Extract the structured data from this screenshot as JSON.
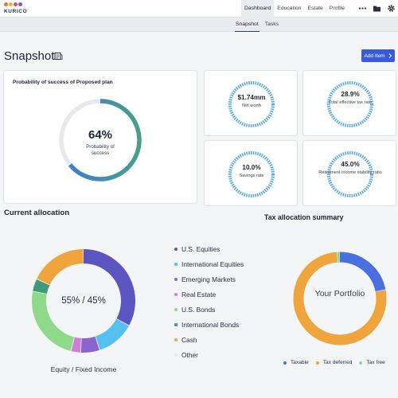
{
  "brand": {
    "name": "KURICO",
    "dot_colors": [
      "#e8732c",
      "#f2b233",
      "#d94c6b",
      "#7d56c9"
    ]
  },
  "nav": {
    "items": [
      {
        "label": "Dashboard",
        "active": true
      },
      {
        "label": "Education",
        "active": false
      },
      {
        "label": "Estate",
        "active": false
      },
      {
        "label": "Profile",
        "active": false
      }
    ],
    "icons": [
      "more-icon",
      "folder-icon",
      "gear-icon"
    ]
  },
  "subnav": {
    "items": [
      {
        "label": "Snapshot",
        "active": true
      },
      {
        "label": "Tasks",
        "active": false
      }
    ]
  },
  "page": {
    "title": "Snapshot",
    "title_icon": "report-icon",
    "add_button_label": "Add Item",
    "accent_color": "#3a5bd9"
  },
  "plan_card": {
    "title": "Probability of success of Proposed plan",
    "value": "64%",
    "progress": 0.64,
    "sublabel": "Probability of success"
  },
  "metrics": [
    {
      "value": "$1.74mm",
      "label": "Net worth"
    },
    {
      "value": "28.9%",
      "label": "Total effective tax rate"
    },
    {
      "value": "10.0%",
      "label": "Savings rate"
    },
    {
      "value": "45.0%",
      "label": "Retirement income stability ratio"
    }
  ],
  "current_allocation": {
    "title": "Current allocation",
    "center_label": "55% / 45%",
    "caption": "Equity / Fixed Income",
    "legend": [
      {
        "label": "U.S. Equities",
        "color": "#5b55c2"
      },
      {
        "label": "International Equities",
        "color": "#56c1ef"
      },
      {
        "label": "Emerging Markets",
        "color": "#8a64cf"
      },
      {
        "label": "Real Estate",
        "color": "#d07fd8"
      },
      {
        "label": "U.S. Bonds",
        "color": "#8fd98a"
      },
      {
        "label": "International Bonds",
        "color": "#3f9a7c"
      },
      {
        "label": "Cash",
        "color": "#f0a43c"
      },
      {
        "label": "Other",
        "color": "#e9ebef"
      }
    ],
    "shares": [
      0.33,
      0.12,
      0.06,
      0.03,
      0.24,
      0.04,
      0.18,
      0.0
    ]
  },
  "tax_allocation": {
    "title": "Tax allocation summary",
    "center_label": "Your Portfolio",
    "legend": [
      {
        "label": "Taxable",
        "color": "#4a6fe0"
      },
      {
        "label": "Tax deferred",
        "color": "#f0a43c"
      },
      {
        "label": "Tax free",
        "color": "#8fd98a"
      }
    ],
    "shares": [
      0.22,
      0.77,
      0.01
    ]
  }
}
